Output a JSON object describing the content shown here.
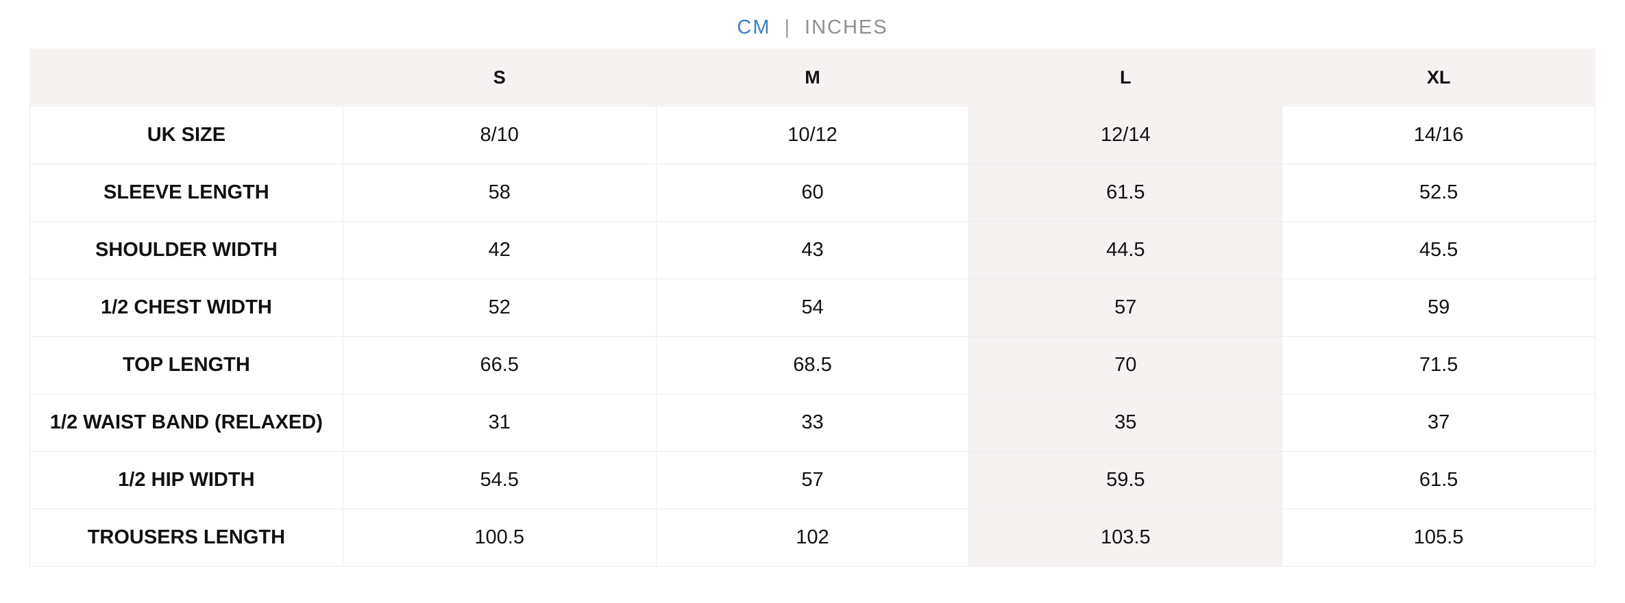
{
  "unit_toggle": {
    "active": "CM",
    "separator": "|",
    "inactive": "INCHES"
  },
  "colors": {
    "active_unit": "#3f7fc4",
    "inactive_unit": "#8f8f8f",
    "header_bg": "#f6f2f1",
    "highlight_column_bg": "#f6f2f1"
  },
  "table": {
    "corner": "",
    "columns": [
      "S",
      "M",
      "L",
      "XL"
    ],
    "highlighted_column": "L",
    "rows": [
      {
        "label": "UK SIZE",
        "values": [
          "8/10",
          "10/12",
          "12/14",
          "14/16"
        ]
      },
      {
        "label": "SLEEVE LENGTH",
        "values": [
          "58",
          "60",
          "61.5",
          "52.5"
        ]
      },
      {
        "label": "SHOULDER WIDTH",
        "values": [
          "42",
          "43",
          "44.5",
          "45.5"
        ]
      },
      {
        "label": "1/2 CHEST WIDTH",
        "values": [
          "52",
          "54",
          "57",
          "59"
        ]
      },
      {
        "label": "TOP LENGTH",
        "values": [
          "66.5",
          "68.5",
          "70",
          "71.5"
        ]
      },
      {
        "label": "1/2 WAIST BAND (RELAXED)",
        "values": [
          "31",
          "33",
          "35",
          "37"
        ]
      },
      {
        "label": "1/2 HIP WIDTH",
        "values": [
          "54.5",
          "57",
          "59.5",
          "61.5"
        ]
      },
      {
        "label": "TROUSERS LENGTH",
        "values": [
          "100.5",
          "102",
          "103.5",
          "105.5"
        ]
      }
    ]
  }
}
